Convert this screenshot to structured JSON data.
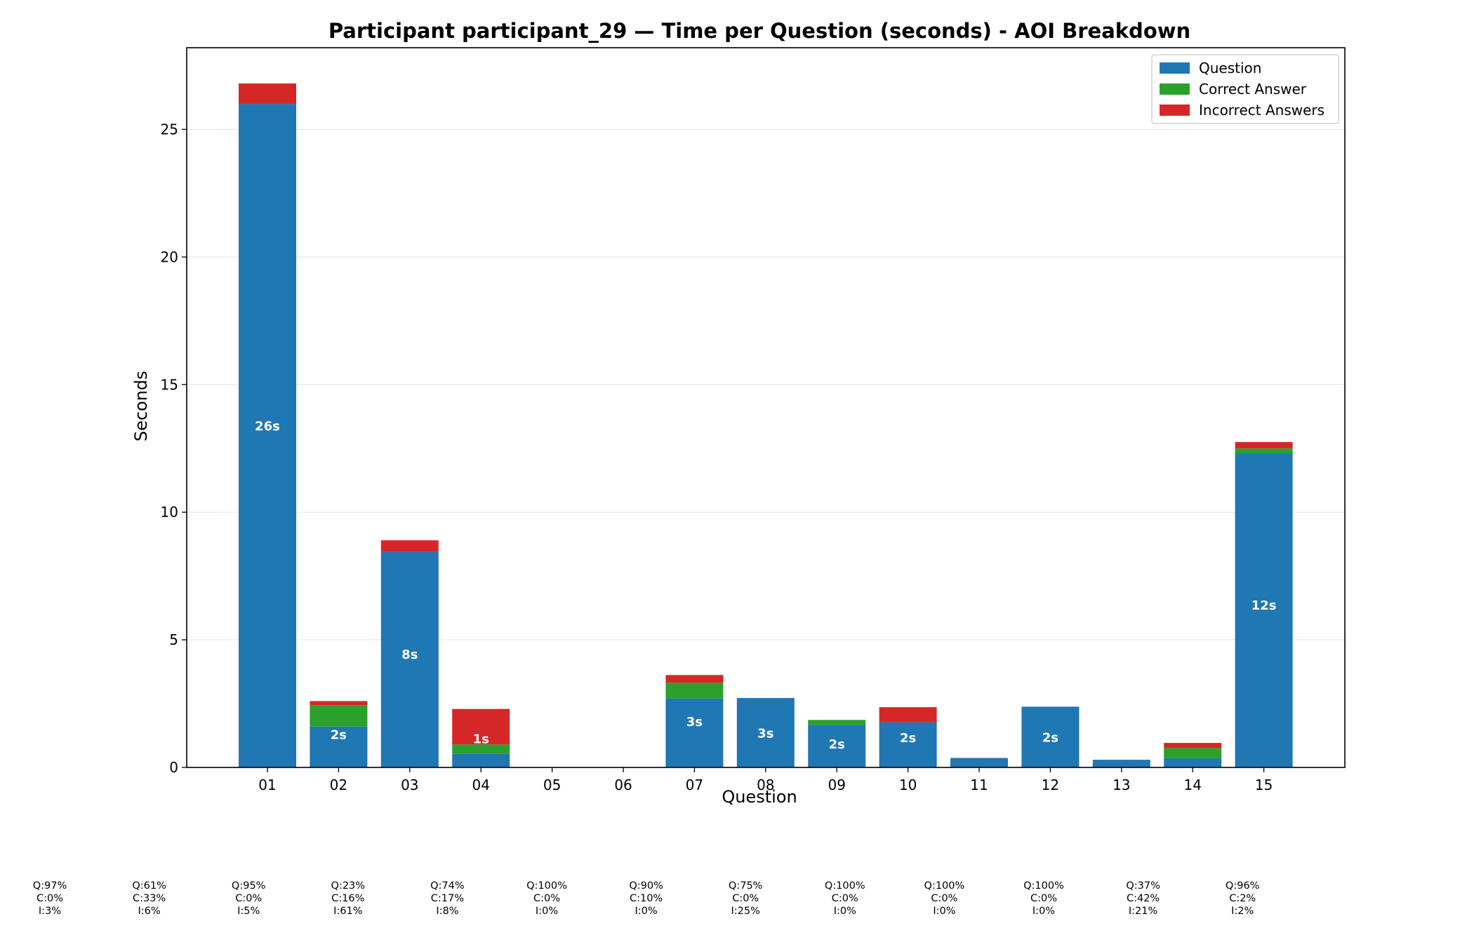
{
  "chart_data": {
    "type": "bar",
    "stacked": true,
    "title": "Participant participant_29 — Time per Question (seconds) - AOI Breakdown",
    "xlabel": "Question",
    "ylabel": "Seconds",
    "ylim": [
      0,
      28.2
    ],
    "yticks": [
      0,
      5,
      10,
      15,
      20,
      25
    ],
    "grid": "y",
    "legend_position": "top-right",
    "categories": [
      "01",
      "02",
      "03",
      "04",
      "05",
      "06",
      "07",
      "08",
      "09",
      "10",
      "11",
      "12",
      "13",
      "14",
      "15"
    ],
    "series": [
      {
        "name": "Question",
        "color": "#1f77b4",
        "values": [
          26.0,
          1.6,
          8.45,
          0.53,
          0,
          0,
          2.7,
          2.72,
          1.66,
          1.77,
          0.37,
          2.38,
          0.3,
          0.36,
          12.3
        ]
      },
      {
        "name": "Correct Answer",
        "color": "#2ca02c",
        "values": [
          0,
          0.84,
          0,
          0.37,
          0,
          0,
          0.62,
          0,
          0.2,
          0,
          0,
          0,
          0,
          0.4,
          0.2
        ]
      },
      {
        "name": "Incorrect Answers",
        "color": "#d62728",
        "values": [
          0.8,
          0.16,
          0.45,
          1.39,
          0,
          0,
          0.3,
          0,
          0,
          0.59,
          0,
          0,
          0,
          0.2,
          0.25
        ]
      }
    ],
    "bar_labels": [
      "26s",
      "2s",
      "8s",
      "1s",
      "",
      "",
      "3s",
      "3s",
      "2s",
      "2s",
      "",
      "2s",
      "",
      "",
      "12s"
    ],
    "percent_annotations": [
      {
        "q": "Q:97%",
        "c": "C:0%",
        "i": "I:3%"
      },
      {
        "q": "Q:61%",
        "c": "C:33%",
        "i": "I:6%"
      },
      {
        "q": "Q:95%",
        "c": "C:0%",
        "i": "I:5%"
      },
      {
        "q": "Q:23%",
        "c": "C:16%",
        "i": "I:61%"
      },
      {
        "q": "Q:74%",
        "c": "C:17%",
        "i": "I:8%"
      },
      {
        "q": "Q:100%",
        "c": "C:0%",
        "i": "I:0%"
      },
      {
        "q": "Q:90%",
        "c": "C:10%",
        "i": "I:0%"
      },
      {
        "q": "Q:75%",
        "c": "C:0%",
        "i": "I:25%"
      },
      {
        "q": "Q:100%",
        "c": "C:0%",
        "i": "I:0%"
      },
      {
        "q": "Q:100%",
        "c": "C:0%",
        "i": "I:0%"
      },
      {
        "q": "Q:100%",
        "c": "C:0%",
        "i": "I:0%"
      },
      {
        "q": "Q:37%",
        "c": "C:42%",
        "i": "I:21%"
      },
      {
        "q": "Q:96%",
        "c": "C:2%",
        "i": "I:2%"
      }
    ]
  }
}
